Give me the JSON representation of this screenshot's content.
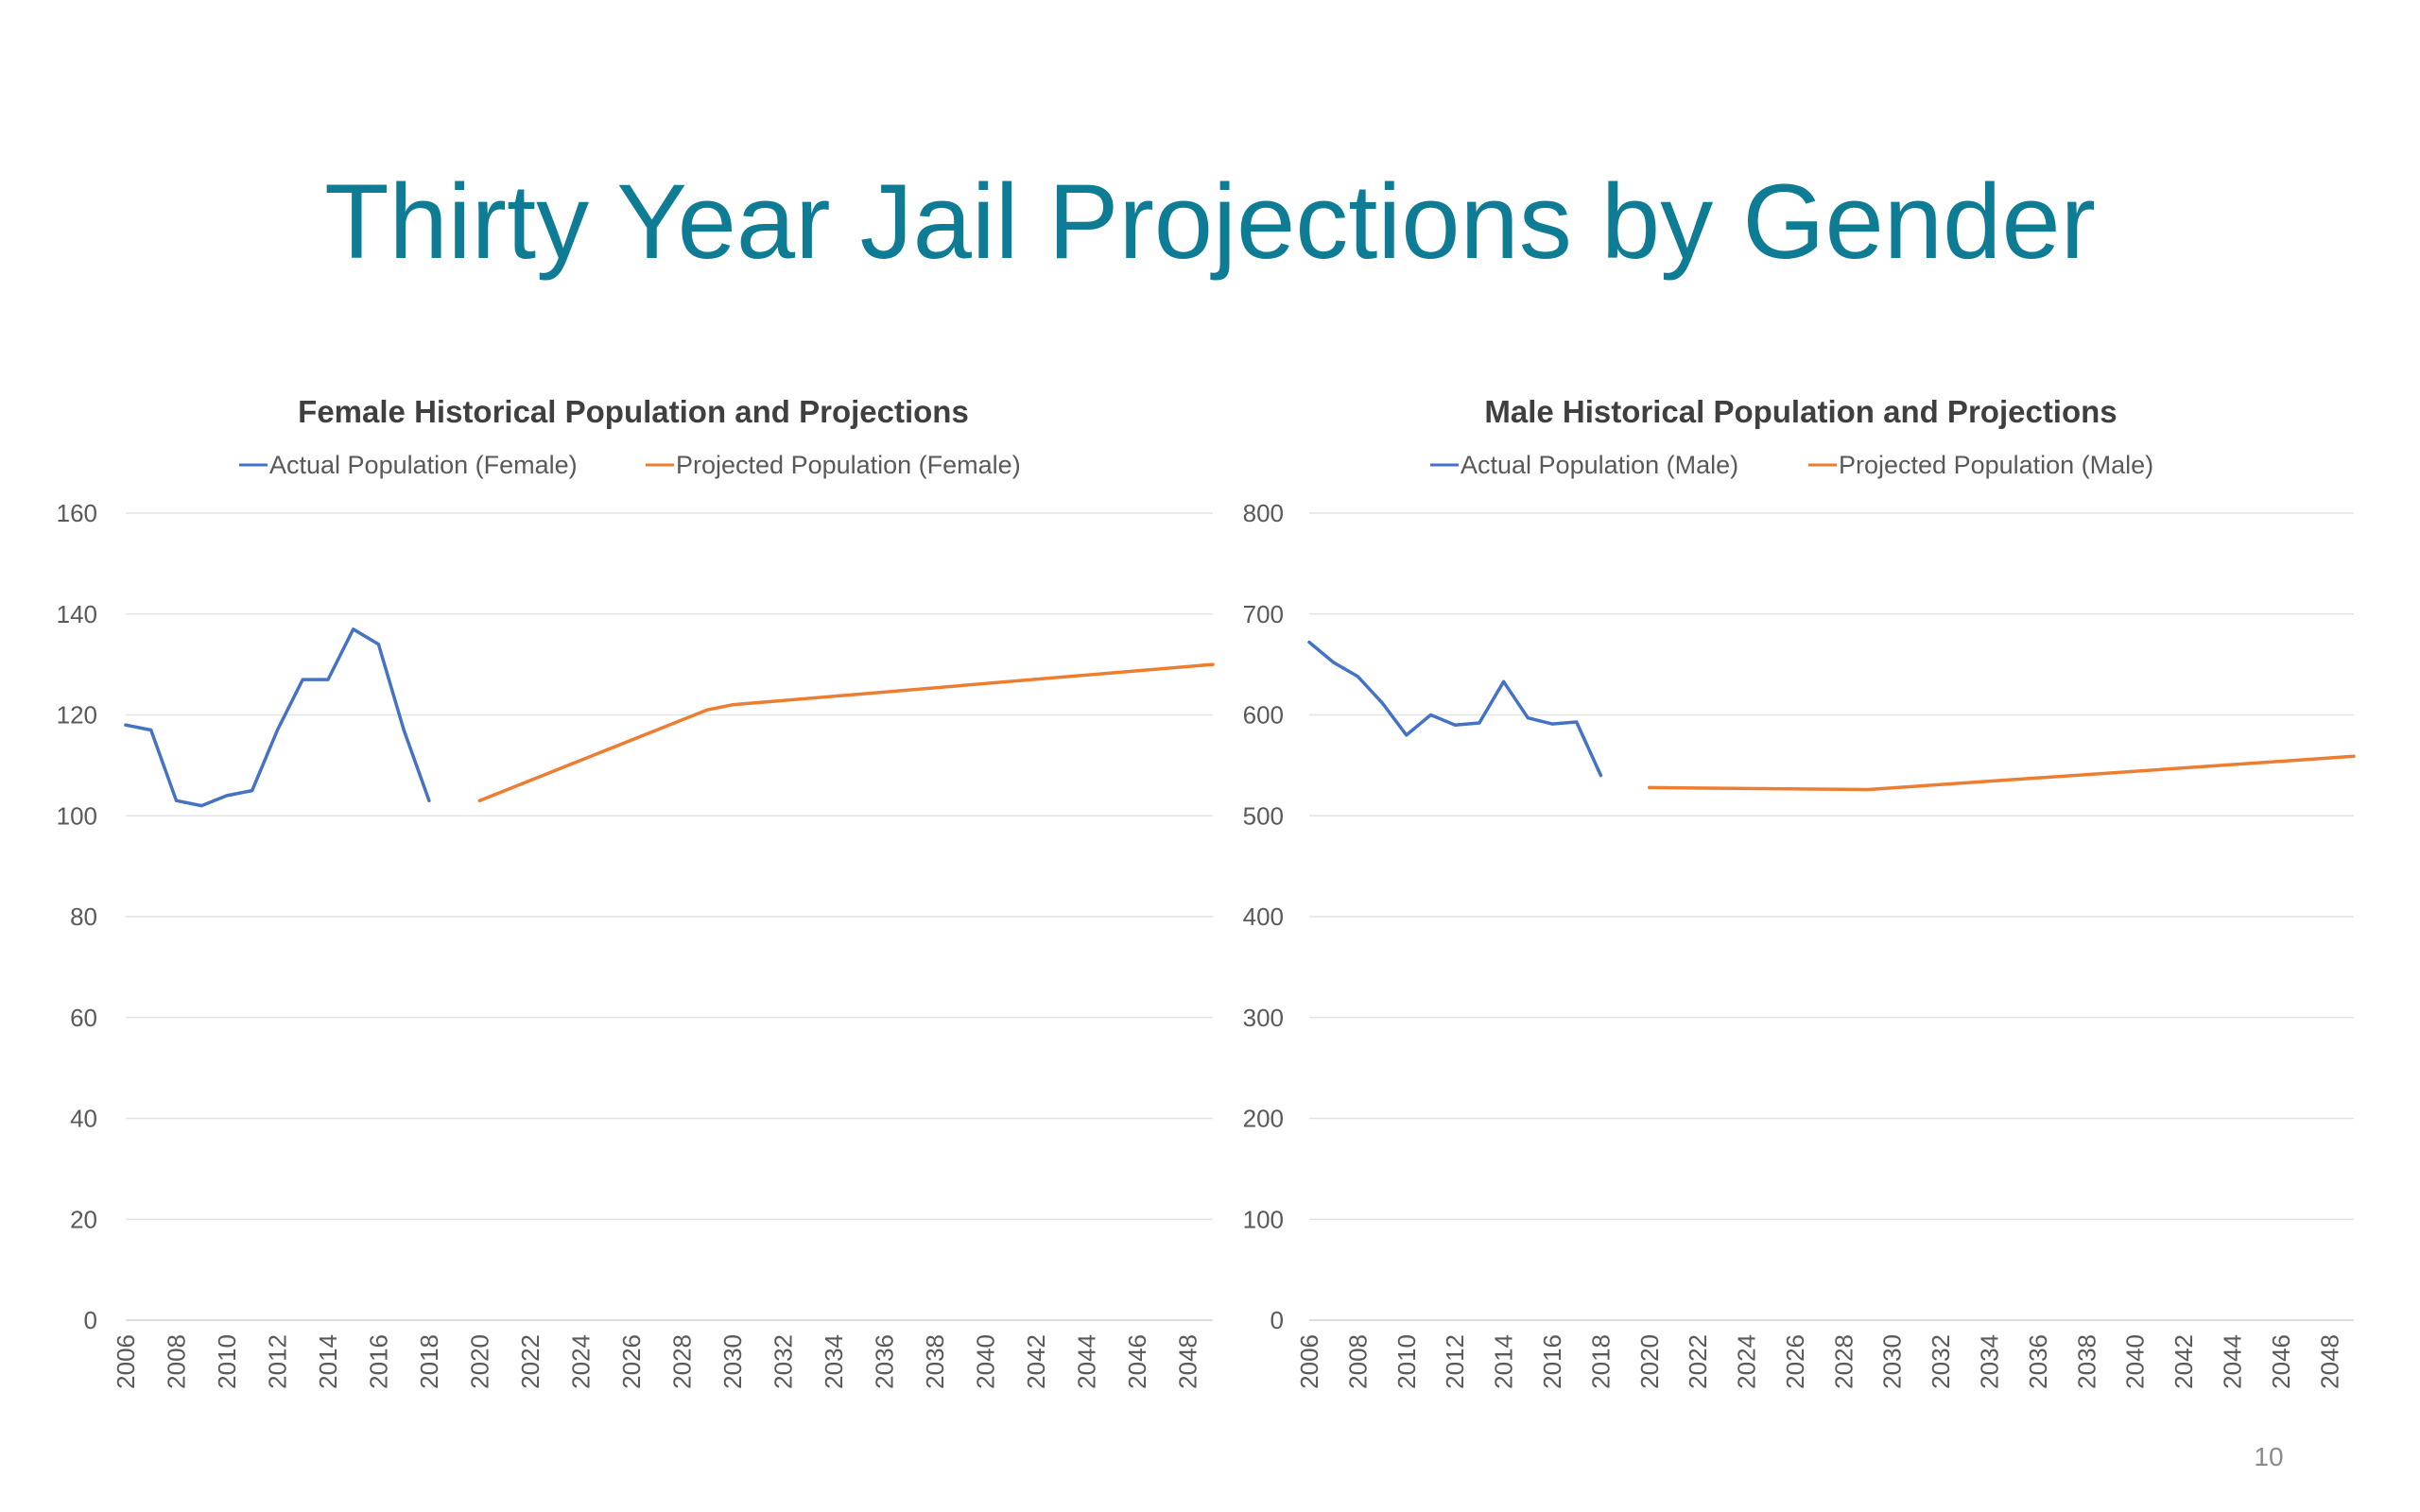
{
  "slide": {
    "title": "Thirty Year Jail Projections by Gender",
    "page_number": "10"
  },
  "colors": {
    "title": "#0e7c95",
    "actual": "#4472c4",
    "projected": "#ed7d31",
    "grid": "#e4e4e4",
    "text": "#595959"
  },
  "chart_data": [
    {
      "type": "line",
      "title": "Female Historical Population and Projections",
      "xlabel": "",
      "ylabel": "",
      "ylim": [
        0,
        160
      ],
      "yticks": [
        "0",
        "20",
        "40",
        "60",
        "80",
        "100",
        "120",
        "140",
        "160"
      ],
      "x_tick_labels": [
        "2006",
        "2008",
        "2010",
        "2012",
        "2014",
        "2016",
        "2018",
        "2020",
        "2022",
        "2024",
        "2026",
        "2028",
        "2030",
        "2032",
        "2034",
        "2036",
        "2038",
        "2040",
        "2042",
        "2044",
        "2046",
        "2048"
      ],
      "xlim": [
        2006,
        2049
      ],
      "grid": true,
      "legend_position": "top",
      "series": [
        {
          "name": "Actual Population (Female)",
          "color": "#4472c4",
          "x": [
            2006,
            2007,
            2008,
            2009,
            2010,
            2011,
            2012,
            2013,
            2014,
            2015,
            2016,
            2017,
            2018
          ],
          "y": [
            118,
            117,
            103,
            102,
            104,
            105,
            117,
            127,
            127,
            137,
            134,
            117,
            103
          ]
        },
        {
          "name": "Projected Population (Female)",
          "color": "#ed7d31",
          "x": [
            2020,
            2029,
            2030,
            2049
          ],
          "y": [
            103,
            121,
            122,
            130
          ]
        }
      ]
    },
    {
      "type": "line",
      "title": "Male Historical Population and Projections",
      "xlabel": "",
      "ylabel": "",
      "ylim": [
        0,
        800
      ],
      "yticks": [
        "0",
        "100",
        "200",
        "300",
        "400",
        "500",
        "600",
        "700",
        "800"
      ],
      "x_tick_labels": [
        "2006",
        "2008",
        "2010",
        "2012",
        "2014",
        "2016",
        "2018",
        "2020",
        "2022",
        "2024",
        "2026",
        "2028",
        "2030",
        "2032",
        "2034",
        "2036",
        "2038",
        "2040",
        "2042",
        "2044",
        "2046",
        "2048"
      ],
      "xlim": [
        2006,
        2049
      ],
      "grid": true,
      "legend_position": "top",
      "series": [
        {
          "name": "Actual Population (Male)",
          "color": "#4472c4",
          "x": [
            2006,
            2007,
            2008,
            2009,
            2010,
            2011,
            2012,
            2013,
            2014,
            2015,
            2016,
            2017,
            2018
          ],
          "y": [
            672,
            652,
            638,
            612,
            580,
            600,
            590,
            592,
            633,
            597,
            591,
            593,
            540
          ]
        },
        {
          "name": "Projected Population (Male)",
          "color": "#ed7d31",
          "x": [
            2020,
            2029,
            2049
          ],
          "y": [
            528,
            526,
            559
          ]
        }
      ]
    }
  ]
}
